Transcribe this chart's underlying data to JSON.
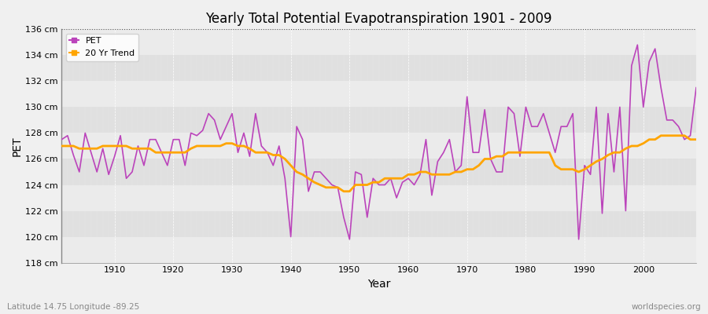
{
  "title": "Yearly Total Potential Evapotranspiration 1901 - 2009",
  "xlabel": "Year",
  "ylabel": "PET",
  "subtitle_left": "Latitude 14.75 Longitude -89.25",
  "subtitle_right": "worldspecies.org",
  "ylim": [
    118,
    136
  ],
  "ytick_values": [
    118,
    120,
    122,
    124,
    126,
    128,
    130,
    132,
    134,
    136
  ],
  "ytick_labels": [
    "118 cm",
    "120 cm",
    "122 cm",
    "124 cm",
    "126 cm",
    "128 cm",
    "130 cm",
    "132 cm",
    "134 cm",
    "136 cm"
  ],
  "pet_color": "#BB44BB",
  "trend_color": "#FFA500",
  "fig_bg_color": "#F0F0F0",
  "plot_bg_light": "#EBEBEB",
  "plot_bg_dark": "#E0E0E0",
  "legend_labels": [
    "PET",
    "20 Yr Trend"
  ],
  "xticks": [
    1910,
    1920,
    1930,
    1940,
    1950,
    1960,
    1970,
    1980,
    1990,
    2000
  ],
  "pet_years": [
    1901,
    1902,
    1903,
    1904,
    1905,
    1906,
    1907,
    1908,
    1909,
    1910,
    1911,
    1912,
    1913,
    1914,
    1915,
    1916,
    1917,
    1918,
    1919,
    1920,
    1921,
    1922,
    1923,
    1924,
    1925,
    1926,
    1927,
    1928,
    1929,
    1930,
    1931,
    1932,
    1933,
    1934,
    1935,
    1936,
    1937,
    1938,
    1939,
    1940,
    1941,
    1942,
    1943,
    1944,
    1945,
    1946,
    1947,
    1948,
    1949,
    1950,
    1951,
    1952,
    1953,
    1954,
    1955,
    1956,
    1957,
    1958,
    1959,
    1960,
    1961,
    1962,
    1963,
    1964,
    1965,
    1966,
    1967,
    1968,
    1969,
    1970,
    1971,
    1972,
    1973,
    1974,
    1975,
    1976,
    1977,
    1978,
    1979,
    1980,
    1981,
    1982,
    1983,
    1984,
    1985,
    1986,
    1987,
    1988,
    1989,
    1990,
    1991,
    1992,
    1993,
    1994,
    1995,
    1996,
    1997,
    1998,
    1999,
    2000,
    2001,
    2002,
    2003,
    2004,
    2005,
    2006,
    2007,
    2008,
    2009
  ],
  "pet_values": [
    127.5,
    127.8,
    126.3,
    125.0,
    128.0,
    126.5,
    125.0,
    126.8,
    124.8,
    126.2,
    127.8,
    124.5,
    125.0,
    127.0,
    125.5,
    127.5,
    127.5,
    126.5,
    125.5,
    127.5,
    127.5,
    125.5,
    128.0,
    127.8,
    128.2,
    129.5,
    129.0,
    127.5,
    128.5,
    129.5,
    126.5,
    128.0,
    126.2,
    129.5,
    127.0,
    126.5,
    125.5,
    127.0,
    124.5,
    120.0,
    128.5,
    127.5,
    123.5,
    125.0,
    125.0,
    124.5,
    124.0,
    123.8,
    121.5,
    119.8,
    125.0,
    124.8,
    121.5,
    124.5,
    124.0,
    124.0,
    124.5,
    123.0,
    124.2,
    124.5,
    124.0,
    124.8,
    127.5,
    123.2,
    125.8,
    126.5,
    127.5,
    125.0,
    125.5,
    130.8,
    126.5,
    126.5,
    129.8,
    126.0,
    125.0,
    125.0,
    130.0,
    129.5,
    126.2,
    130.0,
    128.5,
    128.5,
    129.5,
    128.0,
    126.5,
    128.5,
    128.5,
    129.5,
    119.8,
    125.5,
    124.8,
    130.0,
    121.8,
    129.5,
    125.0,
    130.0,
    122.0,
    133.2,
    134.8,
    130.0,
    133.5,
    134.5,
    131.5,
    129.0,
    129.0,
    128.5,
    127.5,
    127.8,
    131.5
  ],
  "trend_years": [
    1901,
    1902,
    1903,
    1904,
    1905,
    1906,
    1907,
    1908,
    1909,
    1910,
    1911,
    1912,
    1913,
    1914,
    1915,
    1916,
    1917,
    1918,
    1919,
    1920,
    1921,
    1922,
    1923,
    1924,
    1925,
    1926,
    1927,
    1928,
    1929,
    1930,
    1931,
    1932,
    1933,
    1934,
    1935,
    1936,
    1937,
    1938,
    1939,
    1940,
    1941,
    1942,
    1943,
    1944,
    1945,
    1946,
    1947,
    1948,
    1949,
    1950,
    1951,
    1952,
    1953,
    1954,
    1955,
    1956,
    1957,
    1958,
    1959,
    1960,
    1961,
    1962,
    1963,
    1964,
    1965,
    1966,
    1967,
    1968,
    1969,
    1970,
    1971,
    1972,
    1973,
    1974,
    1975,
    1976,
    1977,
    1978,
    1979,
    1980,
    1981,
    1982,
    1983,
    1984,
    1985,
    1986,
    1987,
    1988,
    1989,
    1990,
    1991,
    1992,
    1993,
    1994,
    1995,
    1996,
    1997,
    1998,
    1999,
    2000,
    2001,
    2002,
    2003,
    2004,
    2005,
    2006,
    2007,
    2008,
    2009
  ],
  "trend_values": [
    127.0,
    127.0,
    127.0,
    126.8,
    126.8,
    126.8,
    126.8,
    127.0,
    127.0,
    127.0,
    127.0,
    127.0,
    126.8,
    126.8,
    126.8,
    126.8,
    126.5,
    126.5,
    126.5,
    126.5,
    126.5,
    126.5,
    126.8,
    127.0,
    127.0,
    127.0,
    127.0,
    127.0,
    127.2,
    127.2,
    127.0,
    127.0,
    126.8,
    126.5,
    126.5,
    126.5,
    126.3,
    126.3,
    126.0,
    125.5,
    125.0,
    124.8,
    124.5,
    124.2,
    124.0,
    123.8,
    123.8,
    123.8,
    123.5,
    123.5,
    124.0,
    124.0,
    124.0,
    124.2,
    124.2,
    124.5,
    124.5,
    124.5,
    124.5,
    124.8,
    124.8,
    125.0,
    125.0,
    124.8,
    124.8,
    124.8,
    124.8,
    125.0,
    125.0,
    125.2,
    125.2,
    125.5,
    126.0,
    126.0,
    126.2,
    126.2,
    126.5,
    126.5,
    126.5,
    126.5,
    126.5,
    126.5,
    126.5,
    126.5,
    125.5,
    125.2,
    125.2,
    125.2,
    125.0,
    125.2,
    125.5,
    125.8,
    126.0,
    126.3,
    126.5,
    126.5,
    126.8,
    127.0,
    127.0,
    127.2,
    127.5,
    127.5,
    127.8,
    127.8,
    127.8,
    127.8,
    127.8,
    127.5,
    127.5
  ]
}
